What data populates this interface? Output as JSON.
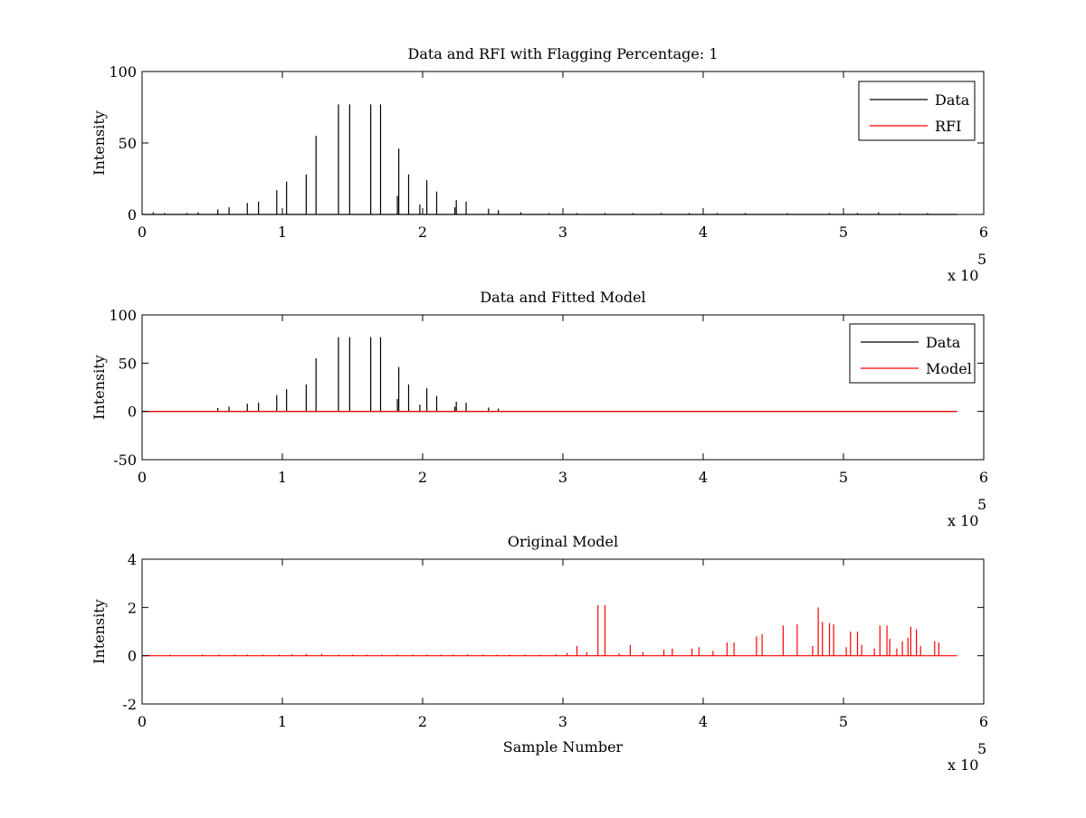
{
  "chart_data": [
    {
      "type": "line",
      "title": "Data and RFI with Flagging Percentage: 1",
      "xlabel": "",
      "ylabel": "Intensity",
      "xlim": [
        0,
        600000
      ],
      "ylim": [
        0,
        100
      ],
      "x_ticks": [
        "0",
        "1",
        "2",
        "3",
        "4",
        "5",
        "6"
      ],
      "y_ticks": [
        "0",
        "50",
        "100"
      ],
      "x_exponent": "x 10",
      "x_exponent_power": "5",
      "grid": false,
      "legend_placement": "top-right",
      "series": [
        {
          "name": "Data",
          "color": "#000000",
          "spikes": [
            [
              8000,
              1.5
            ],
            [
              16000,
              1
            ],
            [
              32000,
              1
            ],
            [
              40000,
              1.5
            ],
            [
              54000,
              3.5
            ],
            [
              62000,
              5
            ],
            [
              75000,
              8
            ],
            [
              83000,
              9
            ],
            [
              96000,
              17
            ],
            [
              103000,
              23
            ],
            [
              117000,
              28
            ],
            [
              124000,
              55
            ],
            [
              140000,
              77
            ],
            [
              148000,
              77
            ],
            [
              163000,
              77
            ],
            [
              170000,
              77
            ],
            [
              183000,
              46
            ],
            [
              182000,
              13
            ],
            [
              190000,
              28
            ],
            [
              198000,
              7
            ],
            [
              203000,
              24
            ],
            [
              210000,
              16
            ],
            [
              224000,
              10
            ],
            [
              223000,
              5
            ],
            [
              231000,
              9
            ],
            [
              247000,
              4
            ],
            [
              254000,
              3
            ],
            [
              270000,
              1.5
            ],
            [
              290000,
              1
            ],
            [
              310000,
              1
            ],
            [
              330000,
              1
            ],
            [
              350000,
              1
            ],
            [
              370000,
              1
            ],
            [
              390000,
              1
            ],
            [
              410000,
              1
            ],
            [
              430000,
              1
            ],
            [
              460000,
              1
            ],
            [
              490000,
              1
            ],
            [
              510000,
              1
            ],
            [
              525000,
              1.5
            ],
            [
              540000,
              1
            ],
            [
              560000,
              1
            ]
          ]
        },
        {
          "name": "RFI",
          "color": "#ff0000",
          "spikes": []
        }
      ]
    },
    {
      "type": "line",
      "title": "Data and Fitted Model",
      "xlabel": "",
      "ylabel": "Intensity",
      "xlim": [
        0,
        600000
      ],
      "ylim": [
        -50,
        100
      ],
      "x_ticks": [
        "0",
        "1",
        "2",
        "3",
        "4",
        "5",
        "6"
      ],
      "y_ticks": [
        "-50",
        "0",
        "50",
        "100"
      ],
      "x_exponent": "x 10",
      "x_exponent_power": "5",
      "grid": false,
      "legend_placement": "top-right",
      "series": [
        {
          "name": "Data",
          "color": "#000000",
          "spikes": [
            [
              54000,
              3.5
            ],
            [
              62000,
              5
            ],
            [
              75000,
              8
            ],
            [
              83000,
              9
            ],
            [
              96000,
              17
            ],
            [
              103000,
              23
            ],
            [
              117000,
              28
            ],
            [
              124000,
              55
            ],
            [
              140000,
              77
            ],
            [
              148000,
              77
            ],
            [
              163000,
              77
            ],
            [
              170000,
              77
            ],
            [
              183000,
              46
            ],
            [
              182000,
              13
            ],
            [
              190000,
              28
            ],
            [
              198000,
              7
            ],
            [
              203000,
              24
            ],
            [
              210000,
              16
            ],
            [
              224000,
              10
            ],
            [
              223000,
              5
            ],
            [
              231000,
              9
            ],
            [
              247000,
              4
            ],
            [
              254000,
              3
            ]
          ]
        },
        {
          "name": "Model",
          "color": "#ff0000",
          "spikes": []
        }
      ]
    },
    {
      "type": "line",
      "title": "Original Model",
      "xlabel": "Sample Number",
      "ylabel": "Intensity",
      "xlim": [
        0,
        600000
      ],
      "ylim": [
        -2,
        4
      ],
      "x_ticks": [
        "0",
        "1",
        "2",
        "3",
        "4",
        "5",
        "6"
      ],
      "y_ticks": [
        "-2",
        "0",
        "2",
        "4"
      ],
      "x_exponent": "x 10",
      "x_exponent_power": "5",
      "grid": false,
      "legend_placement": "none",
      "series": [
        {
          "color": "#ff0000",
          "spikes": [
            [
              5000,
              0.05
            ],
            [
              20000,
              0.05
            ],
            [
              43000,
              0.05
            ],
            [
              55000,
              0.05
            ],
            [
              66000,
              0.05
            ],
            [
              75000,
              0.05
            ],
            [
              86000,
              0.05
            ],
            [
              98000,
              0.05
            ],
            [
              107000,
              0.06
            ],
            [
              117000,
              0.08
            ],
            [
              128000,
              0.08
            ],
            [
              140000,
              0.05
            ],
            [
              150000,
              0.05
            ],
            [
              160000,
              0.05
            ],
            [
              171000,
              0.05
            ],
            [
              182000,
              0.05
            ],
            [
              193000,
              0.05
            ],
            [
              203000,
              0.05
            ],
            [
              213000,
              0.05
            ],
            [
              222000,
              0.05
            ],
            [
              232000,
              0.05
            ],
            [
              243000,
              0.05
            ],
            [
              253000,
              0.05
            ],
            [
              262000,
              0.05
            ],
            [
              273000,
              0.05
            ],
            [
              284000,
              0.05
            ],
            [
              295000,
              0.06
            ],
            [
              303000,
              0.12
            ],
            [
              310000,
              0.4
            ],
            [
              317000,
              0.15
            ],
            [
              325000,
              2.1
            ],
            [
              330000,
              2.1
            ],
            [
              340000,
              0.1
            ],
            [
              348000,
              0.45
            ],
            [
              357000,
              0.15
            ],
            [
              372000,
              0.25
            ],
            [
              378000,
              0.3
            ],
            [
              392000,
              0.3
            ],
            [
              397000,
              0.35
            ],
            [
              407000,
              0.2
            ],
            [
              417000,
              0.55
            ],
            [
              422000,
              0.55
            ],
            [
              438000,
              0.8
            ],
            [
              442000,
              0.9
            ],
            [
              457000,
              1.25
            ],
            [
              467000,
              1.3
            ],
            [
              478000,
              0.4
            ],
            [
              482000,
              2.0
            ],
            [
              485000,
              1.4
            ],
            [
              490000,
              1.35
            ],
            [
              493000,
              1.3
            ],
            [
              502000,
              0.35
            ],
            [
              505000,
              1.0
            ],
            [
              510000,
              1.0
            ],
            [
              513000,
              0.45
            ],
            [
              522000,
              0.3
            ],
            [
              526000,
              1.25
            ],
            [
              531000,
              1.25
            ],
            [
              533000,
              0.7
            ],
            [
              538000,
              0.3
            ],
            [
              542000,
              0.6
            ],
            [
              546000,
              0.75
            ],
            [
              548000,
              1.2
            ],
            [
              552000,
              1.1
            ],
            [
              555000,
              0.4
            ],
            [
              565000,
              0.6
            ],
            [
              568000,
              0.55
            ]
          ]
        }
      ]
    }
  ]
}
